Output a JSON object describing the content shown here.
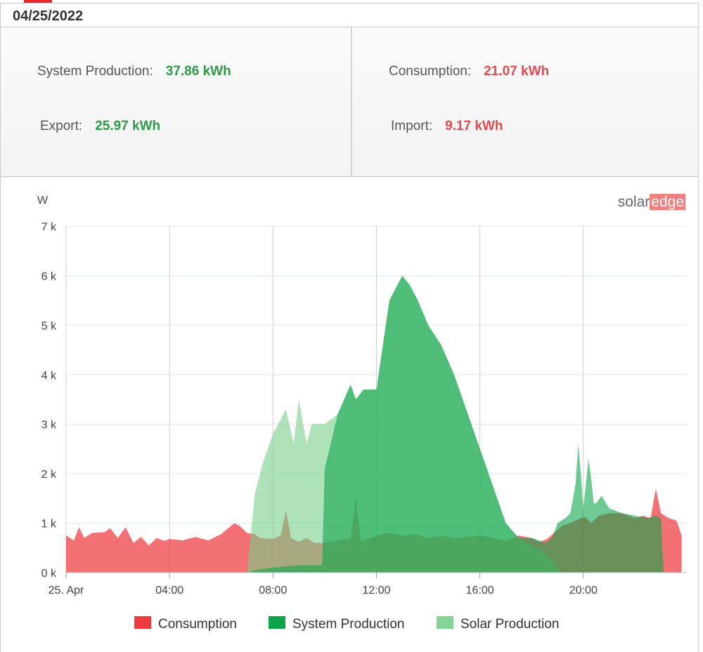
{
  "header": {
    "date": "04/25/2022"
  },
  "summary": {
    "system_production": {
      "label": "System Production:",
      "value": "37.86 kWh"
    },
    "consumption": {
      "label": "Consumption:",
      "value": "21.07 kWh"
    },
    "export": {
      "label": "Export:",
      "value": "25.97 kWh"
    },
    "import": {
      "label": "Import:",
      "value": "9.17 kWh"
    }
  },
  "logo": {
    "part1": "solar",
    "part2": "edge"
  },
  "chart_data": {
    "type": "area",
    "ylabel": "W",
    "ylim": [
      0,
      7000
    ],
    "xlim": [
      0,
      24
    ],
    "y_ticks": [
      "0 k",
      "1 k",
      "2 k",
      "3 k",
      "4 k",
      "5 k",
      "6 k",
      "7 k"
    ],
    "x_ticks": [
      {
        "x": 0,
        "label": "25. Apr"
      },
      {
        "x": 4,
        "label": "04:00"
      },
      {
        "x": 8,
        "label": "08:00"
      },
      {
        "x": 12,
        "label": "12:00"
      },
      {
        "x": 16,
        "label": "16:00"
      },
      {
        "x": 20,
        "label": "20:00"
      }
    ],
    "grid": true,
    "legend_position": "bottom",
    "series": [
      {
        "name": "Consumption",
        "color": "#ee3a3f",
        "x": [
          0,
          0.3,
          0.5,
          0.7,
          1,
          1.5,
          1.7,
          2,
          2.3,
          2.6,
          2.9,
          3.2,
          3.5,
          3.8,
          4,
          4.5,
          5,
          5.5,
          6,
          6.5,
          6.7,
          7,
          7.3,
          7.5,
          8,
          8.3,
          8.5,
          8.7,
          9,
          9.3,
          9.6,
          10,
          10.5,
          11,
          11.2,
          11.4,
          11.7,
          12,
          12.5,
          13,
          13.5,
          14,
          14.5,
          15,
          15.5,
          16,
          16.5,
          17,
          17.5,
          18,
          18.3,
          18.6,
          18.9,
          19.2,
          19.5,
          19.7,
          19.9,
          20.1,
          20.3,
          20.6,
          21,
          21.5,
          22,
          22.3,
          22.6,
          22.8,
          23,
          23.3,
          23.6,
          23.8
        ],
        "values": [
          750,
          650,
          920,
          700,
          800,
          820,
          900,
          700,
          920,
          600,
          720,
          550,
          700,
          640,
          680,
          650,
          720,
          650,
          780,
          1000,
          950,
          800,
          780,
          700,
          680,
          750,
          1260,
          700,
          620,
          700,
          600,
          600,
          650,
          680,
          1520,
          620,
          680,
          750,
          800,
          750,
          780,
          700,
          750,
          700,
          720,
          750,
          700,
          650,
          750,
          700,
          620,
          680,
          820,
          950,
          1000,
          1050,
          1100,
          1120,
          1000,
          1150,
          1200,
          1200,
          1100,
          1150,
          1100,
          1700,
          1200,
          1100,
          1050,
          750
        ]
      },
      {
        "name": "System Production",
        "color": "#0da54b",
        "x": [
          0,
          7,
          7.3,
          8,
          9,
          9.9,
          10,
          10.5,
          11,
          11.2,
          11.5,
          12,
          12.5,
          13,
          13.3,
          13.6,
          14,
          14.5,
          15,
          16,
          17,
          17.5,
          18,
          18.3,
          18.5,
          18.8,
          19,
          19.3,
          19.5,
          19.7,
          19.8,
          19.9,
          20,
          20.1,
          20.2,
          20.3,
          20.4,
          20.5,
          20.7,
          21,
          21.5,
          22,
          22.5,
          22.8,
          23,
          23.1,
          23.8
        ],
        "values": [
          0,
          0,
          50,
          100,
          150,
          150,
          2100,
          3200,
          3800,
          3500,
          3700,
          3700,
          5500,
          6000,
          5800,
          5500,
          5000,
          4600,
          4000,
          2500,
          1000,
          700,
          700,
          650,
          600,
          700,
          1000,
          1100,
          1200,
          1800,
          2600,
          2000,
          1300,
          1800,
          2300,
          1900,
          1400,
          1400,
          1550,
          1300,
          1200,
          1150,
          1100,
          1150,
          1100,
          0,
          0
        ]
      },
      {
        "name": "Solar Production",
        "color": "#78cf8a",
        "x": [
          0,
          7,
          7.3,
          7.6,
          8,
          8.5,
          8.8,
          9,
          9.3,
          9.5,
          9.8,
          10,
          10.5,
          11,
          11.2,
          11.5,
          12,
          12.5,
          13,
          13.3,
          13.6,
          14,
          14.5,
          15,
          16,
          17,
          17.5,
          18,
          18.5,
          18.9,
          19.1,
          23.8
        ],
        "values": [
          0,
          0,
          1600,
          2200,
          2800,
          3300,
          2600,
          3500,
          2600,
          3000,
          3000,
          3000,
          3200,
          3800,
          3500,
          3700,
          3700,
          5500,
          6000,
          5800,
          5500,
          5000,
          4600,
          4000,
          2500,
          1000,
          700,
          550,
          400,
          200,
          0,
          0
        ]
      }
    ]
  }
}
